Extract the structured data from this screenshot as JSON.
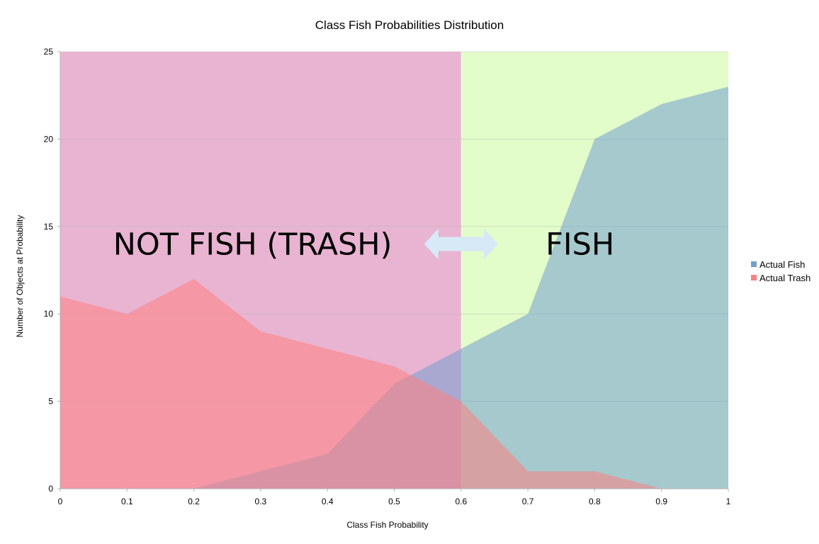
{
  "chart_data": {
    "type": "area",
    "title": "Class Fish Probabilities Distribution",
    "xlabel": "Class Fish Probability",
    "ylabel": "Number of Objects at Probability",
    "x": [
      0,
      0.1,
      0.2,
      0.3,
      0.4,
      0.5,
      0.6,
      0.7,
      0.8,
      0.9,
      1
    ],
    "x_tick_labels": [
      "0",
      "0.1",
      "0.2",
      "0.3",
      "0.4",
      "0.5",
      "0.6",
      "0.7",
      "0.8",
      "0.9",
      "1"
    ],
    "y_tick_labels": [
      "0",
      "5",
      "10",
      "15",
      "20",
      "25"
    ],
    "xlim": [
      0,
      1
    ],
    "ylim": [
      0,
      25
    ],
    "grid": true,
    "legend_position": "right",
    "series": [
      {
        "name": "Actual Fish",
        "color": "#729fcf",
        "values": [
          0,
          0,
          0,
          1,
          2,
          6,
          8,
          10,
          20,
          22,
          23
        ]
      },
      {
        "name": "Actual Trash",
        "color": "#ff8080",
        "values": [
          11,
          10,
          12,
          9,
          8,
          7,
          5,
          1,
          1,
          0,
          0
        ]
      }
    ],
    "regions": [
      {
        "label": "NOT FISH (TRASH)",
        "x_range": [
          0,
          0.6
        ],
        "color": "#e8b4d2"
      },
      {
        "label": "FISH",
        "x_range": [
          0.6,
          1
        ],
        "color": "#e2fdc9"
      }
    ],
    "annotations": [
      {
        "type": "double-arrow",
        "label": "",
        "x_center": 0.6,
        "y": 14
      }
    ]
  }
}
